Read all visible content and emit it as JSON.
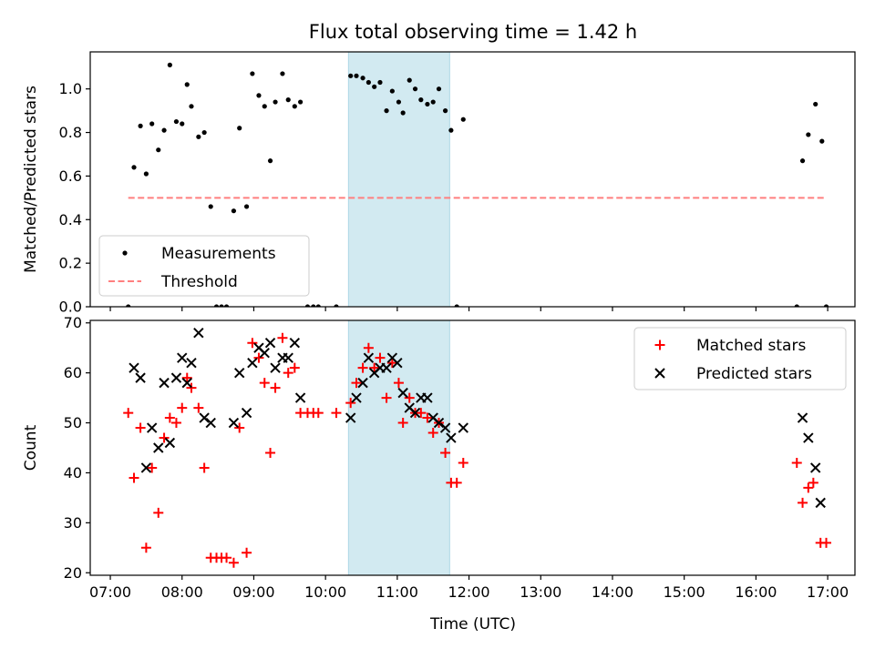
{
  "chart_data": {
    "title": "Flux total observing time = 1.42 h",
    "xlabel": "Time (UTC)",
    "x_ticks": [
      "07:00",
      "08:00",
      "09:00",
      "10:00",
      "11:00",
      "12:00",
      "13:00",
      "14:00",
      "15:00",
      "16:00",
      "17:00"
    ],
    "x_range_hours": [
      6.72,
      17.38
    ],
    "shaded_span_hours": [
      10.32,
      11.73
    ],
    "shade_color": "#add8e6",
    "charts": [
      {
        "type": "scatter",
        "name": "ratio",
        "ylabel": "Matched/Predicted stars",
        "ylim": [
          0,
          1.17
        ],
        "y_ticks": [
          0.0,
          0.2,
          0.4,
          0.6,
          0.8,
          1.0
        ],
        "y_tick_labels": [
          "0.0",
          "0.2",
          "0.4",
          "0.6",
          "0.8",
          "1.0"
        ],
        "legend": [
          "Measurements",
          "Threshold"
        ],
        "legend_position": "lower-left",
        "threshold": {
          "name": "Threshold",
          "y": 0.5,
          "x": [
            7.25,
            16.95
          ],
          "color": "#ff7f7f"
        },
        "series": [
          {
            "name": "Measurements",
            "color": "#000000",
            "points": [
              [
                7.25,
                0.0
              ],
              [
                7.33,
                0.64
              ],
              [
                7.42,
                0.83
              ],
              [
                7.5,
                0.61
              ],
              [
                7.58,
                0.84
              ],
              [
                7.67,
                0.72
              ],
              [
                7.75,
                0.81
              ],
              [
                7.83,
                1.11
              ],
              [
                7.92,
                0.85
              ],
              [
                8.0,
                0.84
              ],
              [
                8.07,
                1.02
              ],
              [
                8.13,
                0.92
              ],
              [
                8.23,
                0.78
              ],
              [
                8.31,
                0.8
              ],
              [
                8.4,
                0.46
              ],
              [
                8.48,
                0.0
              ],
              [
                8.55,
                0.0
              ],
              [
                8.62,
                0.0
              ],
              [
                8.72,
                0.44
              ],
              [
                8.8,
                0.82
              ],
              [
                8.9,
                0.46
              ],
              [
                8.98,
                1.07
              ],
              [
                9.07,
                0.97
              ],
              [
                9.15,
                0.92
              ],
              [
                9.23,
                0.67
              ],
              [
                9.3,
                0.94
              ],
              [
                9.4,
                1.07
              ],
              [
                9.48,
                0.95
              ],
              [
                9.57,
                0.92
              ],
              [
                9.65,
                0.94
              ],
              [
                9.75,
                0.0
              ],
              [
                9.83,
                0.0
              ],
              [
                9.9,
                0.0
              ],
              [
                10.15,
                0.0
              ],
              [
                10.35,
                1.06
              ],
              [
                10.43,
                1.06
              ],
              [
                10.52,
                1.05
              ],
              [
                10.6,
                1.03
              ],
              [
                10.68,
                1.01
              ],
              [
                10.76,
                1.03
              ],
              [
                10.85,
                0.9
              ],
              [
                10.93,
                0.99
              ],
              [
                11.02,
                0.94
              ],
              [
                11.08,
                0.89
              ],
              [
                11.17,
                1.04
              ],
              [
                11.25,
                1.0
              ],
              [
                11.33,
                0.95
              ],
              [
                11.42,
                0.93
              ],
              [
                11.5,
                0.94
              ],
              [
                11.58,
                1.0
              ],
              [
                11.67,
                0.9
              ],
              [
                11.75,
                0.81
              ],
              [
                11.83,
                0.0
              ],
              [
                11.92,
                0.86
              ],
              [
                16.57,
                0.0
              ],
              [
                16.65,
                0.67
              ],
              [
                16.73,
                0.79
              ],
              [
                16.83,
                0.93
              ],
              [
                16.92,
                0.76
              ],
              [
                16.98,
                0.0
              ]
            ]
          }
        ]
      },
      {
        "type": "scatter",
        "name": "counts",
        "ylabel": "Count",
        "ylim": [
          19.5,
          70.5
        ],
        "y_ticks": [
          20,
          30,
          40,
          50,
          60,
          70
        ],
        "y_tick_labels": [
          "20",
          "30",
          "40",
          "50",
          "60",
          "70"
        ],
        "legend": [
          "Matched stars",
          "Predicted stars"
        ],
        "legend_position": "upper-right",
        "series": [
          {
            "name": "Matched stars",
            "marker": "plus",
            "color": "#ff0000",
            "points": [
              [
                7.25,
                52
              ],
              [
                7.33,
                39
              ],
              [
                7.42,
                49
              ],
              [
                7.5,
                25
              ],
              [
                7.58,
                41
              ],
              [
                7.67,
                32
              ],
              [
                7.75,
                47
              ],
              [
                7.83,
                51
              ],
              [
                7.92,
                50
              ],
              [
                8.0,
                53
              ],
              [
                8.07,
                59
              ],
              [
                8.13,
                57
              ],
              [
                8.23,
                53
              ],
              [
                8.31,
                41
              ],
              [
                8.4,
                23
              ],
              [
                8.48,
                23
              ],
              [
                8.55,
                23
              ],
              [
                8.62,
                23
              ],
              [
                8.72,
                22
              ],
              [
                8.8,
                49
              ],
              [
                8.9,
                24
              ],
              [
                8.98,
                66
              ],
              [
                9.07,
                63
              ],
              [
                9.15,
                58
              ],
              [
                9.23,
                44
              ],
              [
                9.3,
                57
              ],
              [
                9.4,
                67
              ],
              [
                9.48,
                60
              ],
              [
                9.57,
                61
              ],
              [
                9.65,
                52
              ],
              [
                9.75,
                52
              ],
              [
                9.83,
                52
              ],
              [
                9.9,
                52
              ],
              [
                10.15,
                52
              ],
              [
                10.35,
                54
              ],
              [
                10.43,
                58
              ],
              [
                10.52,
                61
              ],
              [
                10.6,
                65
              ],
              [
                10.68,
                61
              ],
              [
                10.76,
                63
              ],
              [
                10.85,
                55
              ],
              [
                10.93,
                62
              ],
              [
                11.02,
                58
              ],
              [
                11.08,
                50
              ],
              [
                11.17,
                55
              ],
              [
                11.25,
                52
              ],
              [
                11.33,
                52
              ],
              [
                11.42,
                51
              ],
              [
                11.5,
                48
              ],
              [
                11.58,
                50
              ],
              [
                11.67,
                44
              ],
              [
                11.75,
                38
              ],
              [
                11.83,
                38
              ],
              [
                11.92,
                42
              ],
              [
                16.57,
                42
              ],
              [
                16.65,
                34
              ],
              [
                16.73,
                37
              ],
              [
                16.8,
                38
              ],
              [
                16.9,
                26
              ],
              [
                16.98,
                26
              ]
            ]
          },
          {
            "name": "Predicted stars",
            "marker": "x",
            "color": "#000000",
            "points": [
              [
                7.33,
                61
              ],
              [
                7.42,
                59
              ],
              [
                7.5,
                41
              ],
              [
                7.58,
                49
              ],
              [
                7.67,
                45
              ],
              [
                7.75,
                58
              ],
              [
                7.83,
                46
              ],
              [
                7.92,
                59
              ],
              [
                8.0,
                63
              ],
              [
                8.07,
                58
              ],
              [
                8.13,
                62
              ],
              [
                8.23,
                68
              ],
              [
                8.31,
                51
              ],
              [
                8.4,
                50
              ],
              [
                8.72,
                50
              ],
              [
                8.8,
                60
              ],
              [
                8.9,
                52
              ],
              [
                8.98,
                62
              ],
              [
                9.07,
                65
              ],
              [
                9.15,
                64
              ],
              [
                9.23,
                66
              ],
              [
                9.3,
                61
              ],
              [
                9.4,
                63
              ],
              [
                9.48,
                63
              ],
              [
                9.57,
                66
              ],
              [
                9.65,
                55
              ],
              [
                10.35,
                51
              ],
              [
                10.43,
                55
              ],
              [
                10.52,
                58
              ],
              [
                10.6,
                63
              ],
              [
                10.68,
                60
              ],
              [
                10.76,
                61
              ],
              [
                10.85,
                61
              ],
              [
                10.93,
                63
              ],
              [
                11.0,
                62
              ],
              [
                11.08,
                56
              ],
              [
                11.17,
                53
              ],
              [
                11.25,
                52
              ],
              [
                11.33,
                55
              ],
              [
                11.42,
                55
              ],
              [
                11.5,
                51
              ],
              [
                11.58,
                50
              ],
              [
                11.67,
                49
              ],
              [
                11.75,
                47
              ],
              [
                11.92,
                49
              ],
              [
                16.65,
                51
              ],
              [
                16.73,
                47
              ],
              [
                16.83,
                41
              ],
              [
                16.9,
                34
              ]
            ]
          }
        ]
      }
    ]
  }
}
